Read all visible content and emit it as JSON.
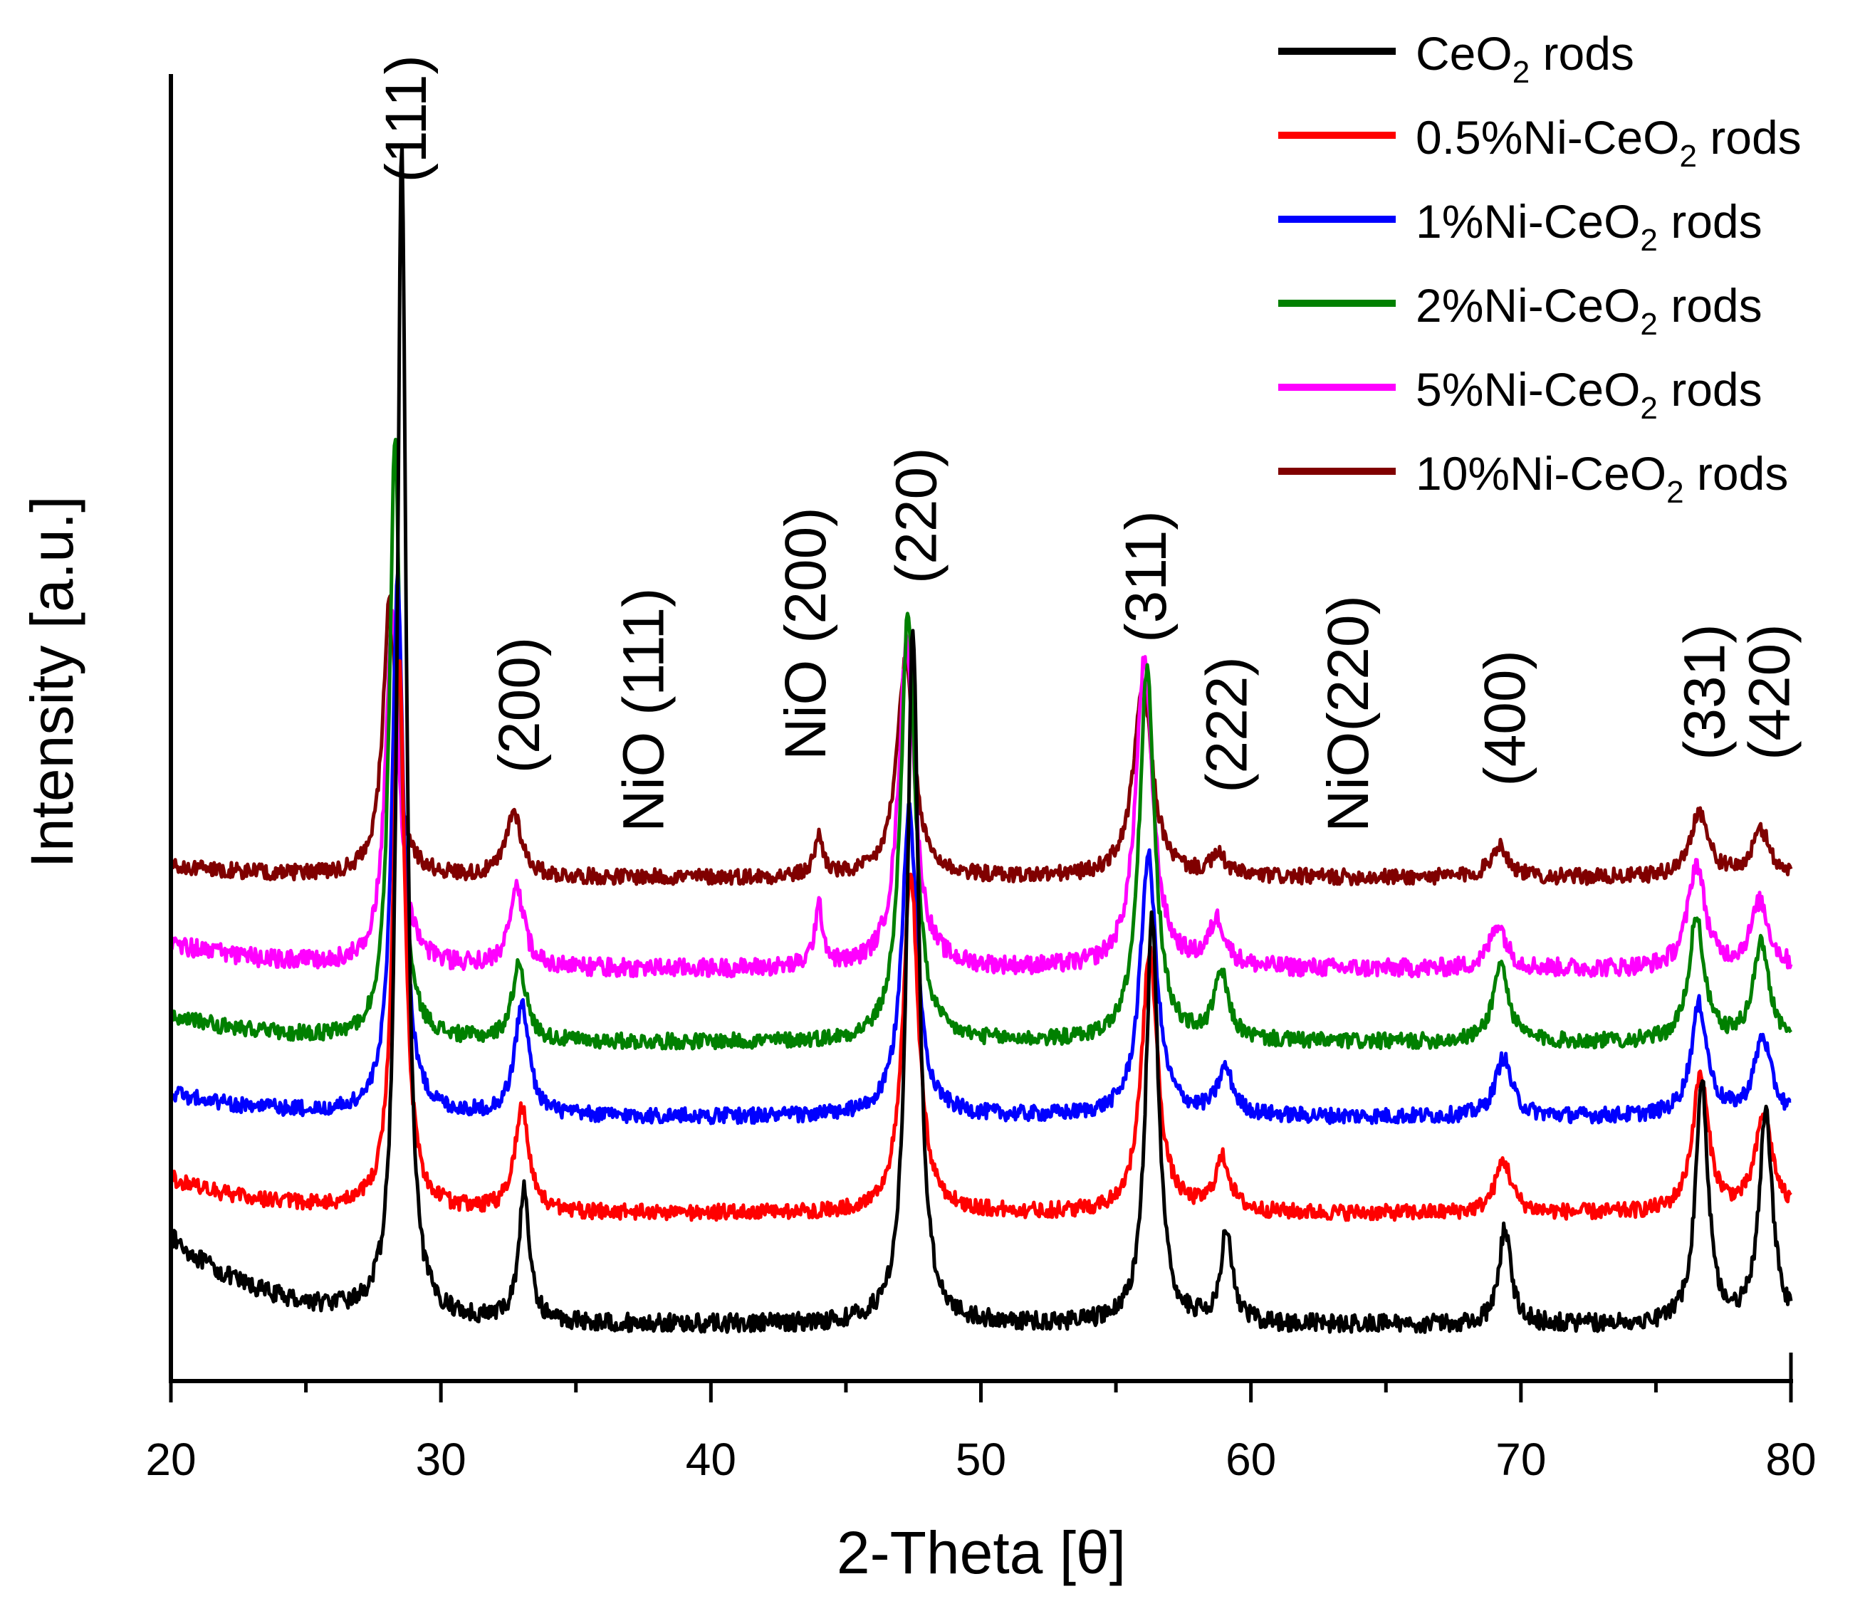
{
  "chart_data": {
    "type": "line",
    "title": "",
    "xlabel": "2-Theta [θ]",
    "ylabel": "Intensity [a.u.]",
    "xlim": [
      20,
      80
    ],
    "ylim": [
      0,
      100
    ],
    "xticks": [
      20,
      30,
      40,
      50,
      60,
      70,
      80
    ],
    "xtick_labels": [
      "20",
      "30",
      "40",
      "50",
      "60",
      "70",
      "80"
    ],
    "yticks_shown": false,
    "legend_position": "top-right",
    "series": [
      {
        "name": "CeO₂ rods",
        "label_main": "CeO",
        "label_sub": "2",
        "label_tail": " rods",
        "color": "#000000",
        "baseline": 4.3,
        "start": 11.0,
        "noise": 0.7,
        "peaks": [
          {
            "x": 28.55,
            "h": 89.5,
            "w": 0.2
          },
          {
            "x": 33.08,
            "h": 10.0,
            "w": 0.24
          },
          {
            "x": 47.48,
            "h": 53.0,
            "w": 0.26
          },
          {
            "x": 56.34,
            "h": 31.0,
            "w": 0.28
          },
          {
            "x": 59.09,
            "h": 7.0,
            "w": 0.26
          },
          {
            "x": 69.41,
            "h": 7.5,
            "w": 0.26
          },
          {
            "x": 76.7,
            "h": 18.5,
            "w": 0.28
          },
          {
            "x": 79.07,
            "h": 16.0,
            "w": 0.3
          }
        ]
      },
      {
        "name": "0.5%Ni-CeO₂ rods",
        "label_main": "0.5%Ni-CeO",
        "label_sub": "2",
        "label_tail": " rods",
        "color": "#ff0000",
        "baseline": 12.8,
        "start": 15.5,
        "noise": 0.6,
        "peaks": [
          {
            "x": 28.45,
            "h": 42.0,
            "w": 0.26
          },
          {
            "x": 33.0,
            "h": 8.0,
            "w": 0.32
          },
          {
            "x": 47.4,
            "h": 26.0,
            "w": 0.34
          },
          {
            "x": 56.25,
            "h": 20.0,
            "w": 0.36
          },
          {
            "x": 58.95,
            "h": 4.0,
            "w": 0.34
          },
          {
            "x": 69.35,
            "h": 4.0,
            "w": 0.36
          },
          {
            "x": 76.65,
            "h": 10.5,
            "w": 0.36
          },
          {
            "x": 79.0,
            "h": 7.5,
            "w": 0.38
          }
        ]
      },
      {
        "name": "1%Ni-CeO₂ rods",
        "label_main": "1%Ni-CeO",
        "label_sub": "2",
        "label_tail": " rods",
        "color": "#0000ff",
        "baseline": 20.2,
        "start": 22.0,
        "noise": 0.6,
        "peaks": [
          {
            "x": 28.4,
            "h": 41.0,
            "w": 0.26
          },
          {
            "x": 33.0,
            "h": 8.5,
            "w": 0.32
          },
          {
            "x": 47.35,
            "h": 23.5,
            "w": 0.34
          },
          {
            "x": 56.2,
            "h": 20.0,
            "w": 0.36
          },
          {
            "x": 59.05,
            "h": 3.5,
            "w": 0.34
          },
          {
            "x": 69.35,
            "h": 4.5,
            "w": 0.36
          },
          {
            "x": 76.6,
            "h": 8.5,
            "w": 0.36
          },
          {
            "x": 78.95,
            "h": 6.0,
            "w": 0.38
          }
        ]
      },
      {
        "name": "2%Ni-CeO₂ rods",
        "label_main": "2%Ni-CeO",
        "label_sub": "2",
        "label_tail": " rods",
        "color": "#008000",
        "baseline": 25.9,
        "start": 28.0,
        "noise": 0.6,
        "peaks": [
          {
            "x": 28.3,
            "h": 46.0,
            "w": 0.24
          },
          {
            "x": 32.9,
            "h": 6.0,
            "w": 0.3
          },
          {
            "x": 47.3,
            "h": 33.0,
            "w": 0.32
          },
          {
            "x": 56.15,
            "h": 28.5,
            "w": 0.34
          },
          {
            "x": 58.9,
            "h": 5.0,
            "w": 0.32
          },
          {
            "x": 69.25,
            "h": 6.0,
            "w": 0.34
          },
          {
            "x": 76.5,
            "h": 9.5,
            "w": 0.34
          },
          {
            "x": 78.9,
            "h": 7.5,
            "w": 0.36
          }
        ]
      },
      {
        "name": "5%Ni-CeO₂ rods",
        "label_main": "5%Ni-CeO",
        "label_sub": "2",
        "label_tail": " rods",
        "color": "#ff00ff",
        "baseline": 31.5,
        "start": 33.5,
        "noise": 0.7,
        "peaks": [
          {
            "x": 28.2,
            "h": 27.0,
            "w": 0.3
          },
          {
            "x": 32.8,
            "h": 6.0,
            "w": 0.34
          },
          {
            "x": 44.0,
            "h": 4.5,
            "w": 0.2
          },
          {
            "x": 47.25,
            "h": 25.0,
            "w": 0.36
          },
          {
            "x": 56.05,
            "h": 23.5,
            "w": 0.38
          },
          {
            "x": 58.75,
            "h": 3.5,
            "w": 0.36
          },
          {
            "x": 69.15,
            "h": 3.5,
            "w": 0.36
          },
          {
            "x": 76.5,
            "h": 8.0,
            "w": 0.38
          },
          {
            "x": 78.85,
            "h": 5.0,
            "w": 0.4
          }
        ]
      },
      {
        "name": "10%Ni-CeO₂ rods",
        "label_main": "10%Ni-CeO",
        "label_sub": "2",
        "label_tail": " rods",
        "color": "#800000",
        "baseline": 38.5,
        "start": 39.5,
        "noise": 0.6,
        "peaks": [
          {
            "x": 28.1,
            "h": 21.0,
            "w": 0.3
          },
          {
            "x": 32.7,
            "h": 5.0,
            "w": 0.34
          },
          {
            "x": 44.0,
            "h": 3.0,
            "w": 0.2
          },
          {
            "x": 47.2,
            "h": 16.5,
            "w": 0.38
          },
          {
            "x": 56.0,
            "h": 14.5,
            "w": 0.42
          },
          {
            "x": 58.8,
            "h": 1.5,
            "w": 0.34
          },
          {
            "x": 69.2,
            "h": 2.5,
            "w": 0.38
          },
          {
            "x": 76.6,
            "h": 5.0,
            "w": 0.4
          },
          {
            "x": 78.9,
            "h": 3.5,
            "w": 0.4
          }
        ]
      }
    ],
    "annotations": [
      {
        "text": "(111)",
        "x": 28.7,
        "y": 91.7
      },
      {
        "text": "(200)",
        "x": 32.9,
        "y": 46.5
      },
      {
        "text": "NiO (111)",
        "x": 37.5,
        "y": 42.0
      },
      {
        "text": "NiO (200)",
        "x": 43.5,
        "y": 47.5
      },
      {
        "text": "(220)",
        "x": 47.6,
        "y": 61.0
      },
      {
        "text": "(311)",
        "x": 56.1,
        "y": 56.5
      },
      {
        "text": "(222)",
        "x": 59.1,
        "y": 45.0
      },
      {
        "text": "NiO(220)",
        "x": 63.6,
        "y": 42.0
      },
      {
        "text": "(400)",
        "x": 69.4,
        "y": 45.5
      },
      {
        "text": "(331)",
        "x": 76.8,
        "y": 47.5
      },
      {
        "text": "(420)",
        "x": 79.2,
        "y": 47.5
      }
    ]
  }
}
